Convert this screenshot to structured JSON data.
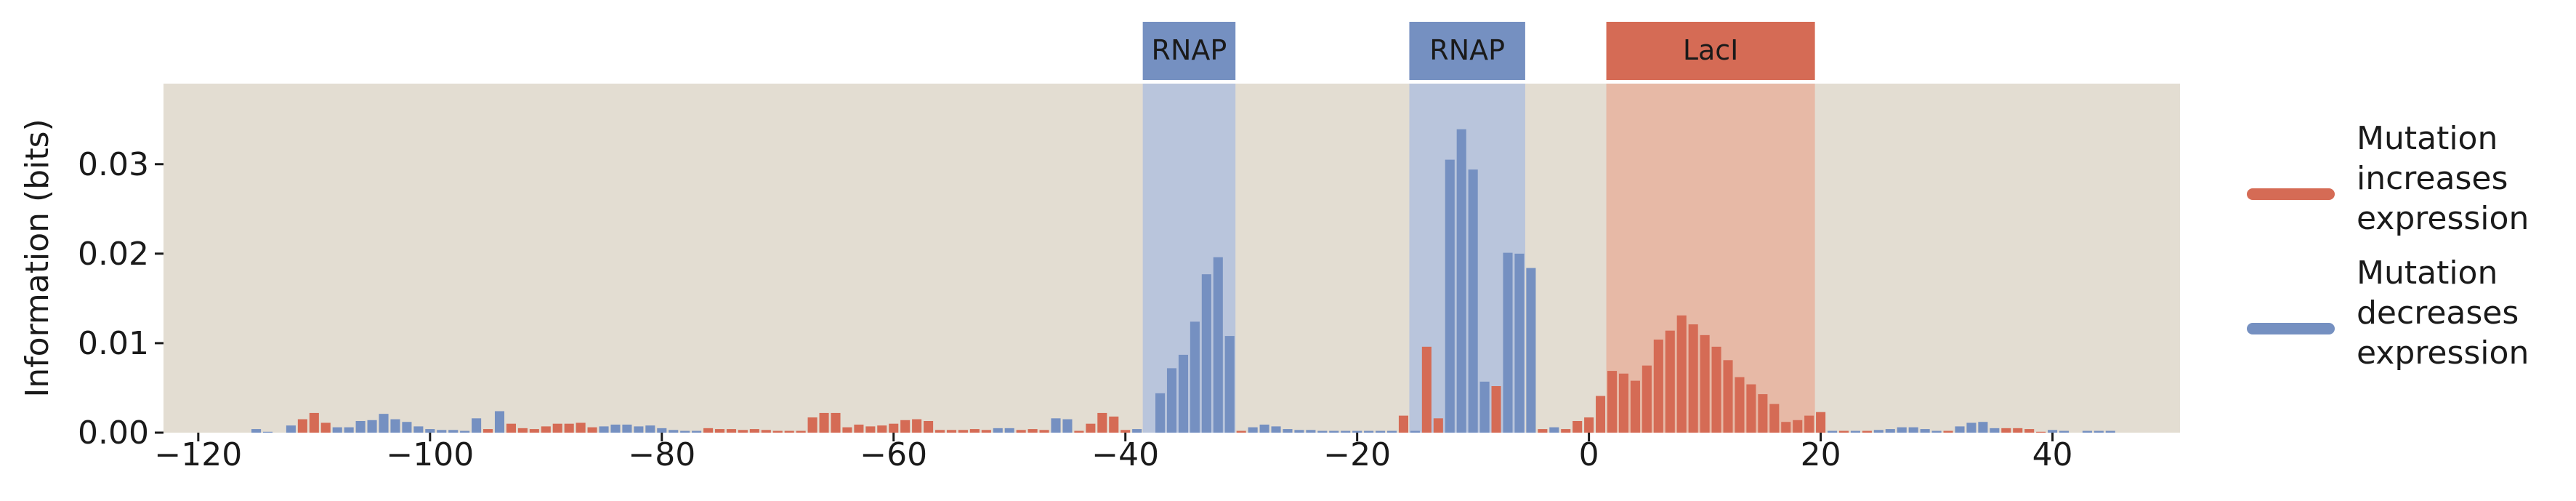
{
  "chart_data": {
    "type": "bar",
    "title": "",
    "xlabel": "",
    "ylabel": "Information (bits)",
    "xlim": [
      -123,
      51
    ],
    "ylim": [
      0,
      0.039
    ],
    "x_ticks": [
      -120,
      -100,
      -80,
      -60,
      -40,
      -20,
      0,
      20,
      40
    ],
    "x_tick_labels": [
      "−120",
      "−100",
      "−80",
      "−60",
      "−40",
      "−20",
      "0",
      "20",
      "40"
    ],
    "y_ticks": [
      0,
      0.01,
      0.02,
      0.03
    ],
    "y_tick_labels": [
      "0.00",
      "0.01",
      "0.02",
      "0.03"
    ],
    "grid": false,
    "background": "#e3ddd2",
    "legend_position": "right",
    "colors": {
      "increase": "#d56b55",
      "decrease": "#7590c1",
      "rnap_region": "#b9c5dc",
      "laci_region": "#e7b9a6"
    },
    "regions": [
      {
        "label": "RNAP",
        "start": -38.5,
        "end": -30.5,
        "color": "#7590c1"
      },
      {
        "label": "RNAP",
        "start": -15.5,
        "end": -5.5,
        "color": "#7590c1"
      },
      {
        "label": "LacI",
        "start": 1.5,
        "end": 19.5,
        "color": "#d56b55"
      }
    ],
    "legend": [
      {
        "lines": [
          "Mutation",
          "increases",
          "expression"
        ],
        "color": "#d56b55"
      },
      {
        "lines": [
          "Mutation",
          "decreases",
          "expression"
        ],
        "color": "#7590c1"
      }
    ],
    "series": [
      {
        "name": "Mutation increases expression",
        "color": "#d56b55",
        "x": [
          -111,
          -110,
          -109,
          -95,
          -93,
          -92,
          -91,
          -90,
          -89,
          -88,
          -87,
          -86,
          -76,
          -75,
          -74,
          -73,
          -72,
          -71,
          -70,
          -69,
          -68,
          -67,
          -66,
          -65,
          -64,
          -63,
          -62,
          -61,
          -60,
          -59,
          -58,
          -57,
          -56,
          -55,
          -54,
          -53,
          -52,
          -49,
          -48,
          -47,
          -44,
          -43,
          -42,
          -41,
          -40,
          -30,
          -16,
          -14,
          -13,
          -8,
          -4,
          -2,
          -1,
          0,
          1,
          2,
          3,
          4,
          5,
          6,
          7,
          8,
          9,
          10,
          11,
          12,
          13,
          14,
          15,
          16,
          17,
          18,
          19,
          20,
          22,
          24,
          31,
          36,
          37,
          38,
          39
        ],
        "values": [
          0.0015,
          0.0022,
          0.0011,
          0.0004,
          0.001,
          0.0005,
          0.0004,
          0.0007,
          0.001,
          0.001,
          0.0011,
          0.0006,
          0.0005,
          0.0004,
          0.0004,
          0.0003,
          0.0004,
          0.0003,
          0.0002,
          0.0002,
          0.0002,
          0.0017,
          0.0022,
          0.0022,
          0.0006,
          0.0009,
          0.0007,
          0.0008,
          0.001,
          0.0014,
          0.0015,
          0.0013,
          0.0003,
          0.0003,
          0.0003,
          0.0004,
          0.0003,
          0.0003,
          0.0004,
          0.0003,
          0.0002,
          0.001,
          0.0022,
          0.0018,
          0.0003,
          0.0002,
          0.0019,
          0.0096,
          0.0016,
          0.0052,
          0.0004,
          0.0004,
          0.0013,
          0.0017,
          0.0041,
          0.0069,
          0.0066,
          0.0058,
          0.0075,
          0.0104,
          0.0114,
          0.0131,
          0.0121,
          0.0109,
          0.0096,
          0.0081,
          0.0062,
          0.0054,
          0.0043,
          0.0032,
          0.0012,
          0.0014,
          0.0019,
          0.0023,
          0.0002,
          0.0002,
          0.0002,
          0.0005,
          0.0005,
          0.0004,
          0.0001
        ]
      },
      {
        "name": "Mutation decreases expression",
        "color": "#7590c1",
        "x": [
          -115,
          -114,
          -112,
          -108,
          -107,
          -106,
          -105,
          -104,
          -103,
          -102,
          -101,
          -100,
          -99,
          -98,
          -97,
          -96,
          -94,
          -85,
          -84,
          -83,
          -82,
          -81,
          -80,
          -79,
          -78,
          -77,
          -51,
          -50,
          -46,
          -45,
          -39,
          -37,
          -36,
          -35,
          -34,
          -33,
          -32,
          -31,
          -29,
          -28,
          -27,
          -26,
          -25,
          -24,
          -23,
          -22,
          -21,
          -20,
          -19,
          -18,
          -17,
          -15,
          -12,
          -11,
          -10,
          -9,
          -7,
          -6,
          -5,
          -3,
          21,
          23,
          25,
          26,
          27,
          28,
          29,
          30,
          32,
          33,
          34,
          35,
          40,
          41,
          43,
          44,
          45
        ],
        "values": [
          0.0004,
          0.0001,
          0.0008,
          0.0006,
          0.0006,
          0.0013,
          0.0014,
          0.0021,
          0.0015,
          0.0012,
          0.0007,
          0.0004,
          0.0003,
          0.0003,
          0.0002,
          0.0016,
          0.0024,
          0.0007,
          0.0009,
          0.0009,
          0.0007,
          0.0008,
          0.0005,
          0.0003,
          0.0002,
          0.0002,
          0.0005,
          0.0005,
          0.0016,
          0.0015,
          0.0004,
          0.0044,
          0.0072,
          0.0087,
          0.0124,
          0.0177,
          0.0196,
          0.0108,
          0.0006,
          0.0009,
          0.0007,
          0.0004,
          0.0003,
          0.0003,
          0.0002,
          0.0002,
          0.0002,
          0.0002,
          0.0002,
          0.0002,
          0.0002,
          0.0002,
          0.0305,
          0.0339,
          0.0294,
          0.0057,
          0.0201,
          0.02,
          0.0184,
          0.0006,
          0.0002,
          0.0002,
          0.0003,
          0.0004,
          0.0006,
          0.0006,
          0.0004,
          0.0002,
          0.0007,
          0.0011,
          0.0012,
          0.0005,
          0.0003,
          0.0002,
          0.0002,
          0.0002,
          0.0002
        ]
      }
    ]
  }
}
